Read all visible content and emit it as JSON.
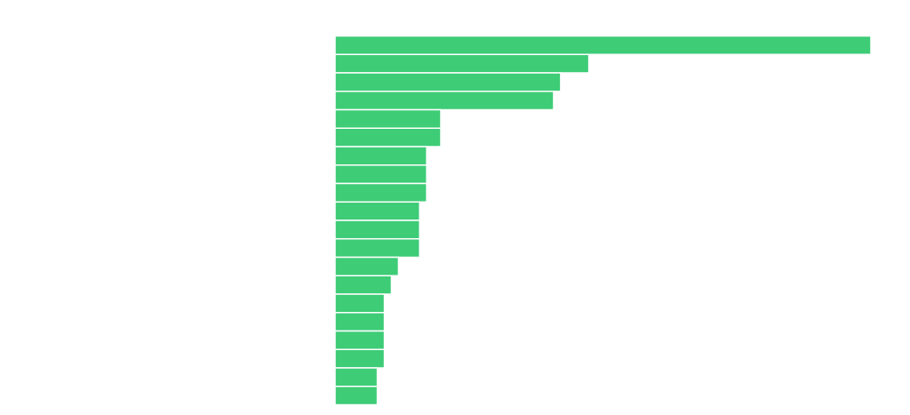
{
  "chart_data": {
    "type": "bar",
    "orientation": "horizontal",
    "values": [
      76,
      36,
      32,
      31,
      15,
      15,
      13,
      13,
      13,
      12,
      12,
      12,
      9,
      8,
      7,
      7,
      7,
      7,
      6,
      6
    ],
    "xlim": [
      0,
      76
    ],
    "grid": false,
    "bar_color": "#3ecc77",
    "bar_stroke": "#ffffff"
  }
}
